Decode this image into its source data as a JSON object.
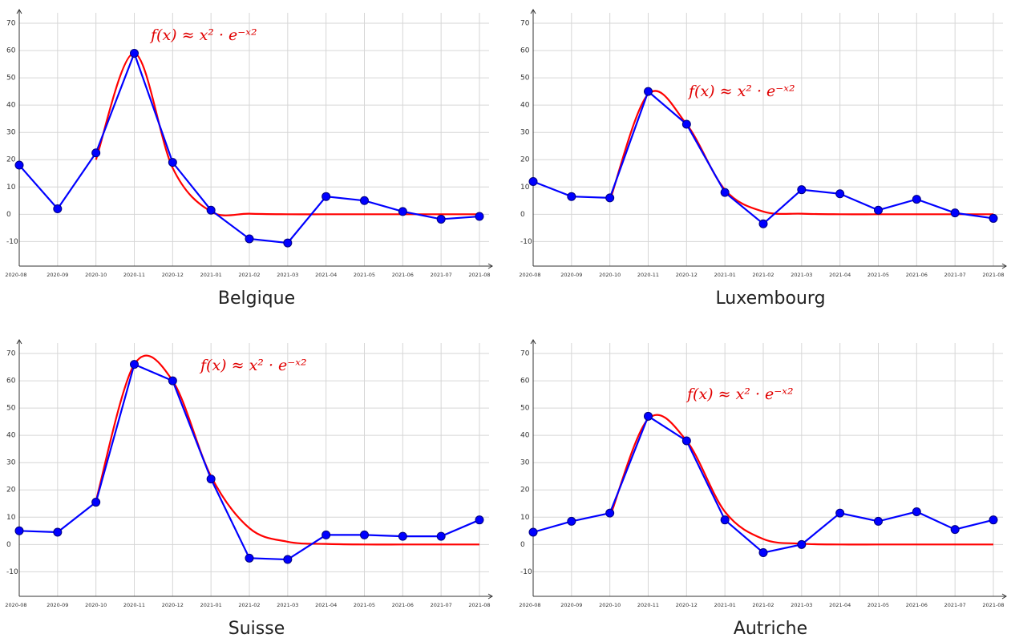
{
  "chart_data": [
    {
      "type": "line",
      "title": "Belgique",
      "annotation": "f(x) ≈ x² · e⁻ˣ²",
      "categories": [
        "2020-08",
        "2020-09",
        "2020-10",
        "2020-11",
        "2020-12",
        "2021-01",
        "2021-02",
        "2021-03",
        "2021-04",
        "2021-05",
        "2021-06",
        "2021-07",
        "2021-08"
      ],
      "series": [
        {
          "color": "#0000ff",
          "markers": true,
          "values": [
            18,
            2,
            22.5,
            59,
            19,
            1.5,
            -9,
            -10.5,
            6.5,
            5,
            1,
            -1.8,
            -0.8
          ]
        },
        {
          "color": "#ff0000",
          "markers": false,
          "values": [
            null,
            null,
            20,
            59,
            17,
            1,
            0.2,
            0,
            0,
            0,
            0,
            0,
            0
          ]
        }
      ],
      "ylim": [
        -19,
        75
      ],
      "yticks": [
        -10,
        0,
        10,
        20,
        30,
        40,
        50,
        60,
        70
      ],
      "grid": true
    },
    {
      "type": "line",
      "title": "Luxembourg",
      "annotation": "f(x) ≈ x² · e⁻ˣ²",
      "categories": [
        "2020-08",
        "2020-09",
        "2020-10",
        "2020-11",
        "2020-12",
        "2021-01",
        "2021-02",
        "2021-03",
        "2021-04",
        "2021-05",
        "2021-06",
        "2021-07",
        "2021-08"
      ],
      "series": [
        {
          "color": "#0000ff",
          "markers": true,
          "values": [
            12,
            6.5,
            6,
            45,
            33,
            8,
            -3.5,
            9,
            7.5,
            1.5,
            5.5,
            0.5,
            -1.5
          ]
        },
        {
          "color": "#ff0000",
          "markers": false,
          "values": [
            null,
            null,
            5,
            44,
            33,
            9,
            1,
            0.2,
            0,
            0,
            0,
            0,
            0
          ]
        }
      ],
      "ylim": [
        -19,
        75
      ],
      "yticks": [
        -10,
        0,
        10,
        20,
        30,
        40,
        50,
        60,
        70
      ],
      "grid": true
    },
    {
      "type": "line",
      "title": "Suisse",
      "annotation": "f(x) ≈ x² · e⁻ˣ²",
      "categories": [
        "2020-08",
        "2020-09",
        "2020-10",
        "2020-11",
        "2020-12",
        "2021-01",
        "2021-02",
        "2021-03",
        "2021-04",
        "2021-05",
        "2021-06",
        "2021-07",
        "2021-08"
      ],
      "series": [
        {
          "color": "#0000ff",
          "markers": true,
          "values": [
            5,
            4.5,
            15.5,
            66,
            60,
            24,
            -5,
            -5.5,
            3.5,
            3.5,
            3,
            3,
            9
          ]
        },
        {
          "color": "#ff0000",
          "markers": false,
          "values": [
            null,
            null,
            16,
            66,
            60,
            25,
            6,
            1,
            0.2,
            0,
            0,
            0,
            0
          ]
        }
      ],
      "ylim": [
        -19,
        75
      ],
      "yticks": [
        -10,
        0,
        10,
        20,
        30,
        40,
        50,
        60,
        70
      ],
      "grid": true
    },
    {
      "type": "line",
      "title": "Autriche",
      "annotation": "f(x) ≈ x² · e⁻ˣ²",
      "categories": [
        "2020-08",
        "2020-09",
        "2020-10",
        "2020-11",
        "2020-12",
        "2021-01",
        "2021-02",
        "2021-03",
        "2021-04",
        "2021-05",
        "2021-06",
        "2021-07",
        "2021-08"
      ],
      "series": [
        {
          "color": "#0000ff",
          "markers": true,
          "values": [
            4.5,
            8.5,
            11.5,
            47,
            38,
            9,
            -3,
            0,
            11.5,
            8.5,
            12,
            5.5,
            9
          ]
        },
        {
          "color": "#ff0000",
          "markers": false,
          "values": [
            null,
            null,
            10,
            46,
            38,
            12,
            2,
            0.3,
            0,
            0,
            0,
            0,
            0
          ]
        }
      ],
      "ylim": [
        -19,
        75
      ],
      "yticks": [
        -10,
        0,
        10,
        20,
        30,
        40,
        50,
        60,
        70
      ],
      "grid": true
    }
  ]
}
